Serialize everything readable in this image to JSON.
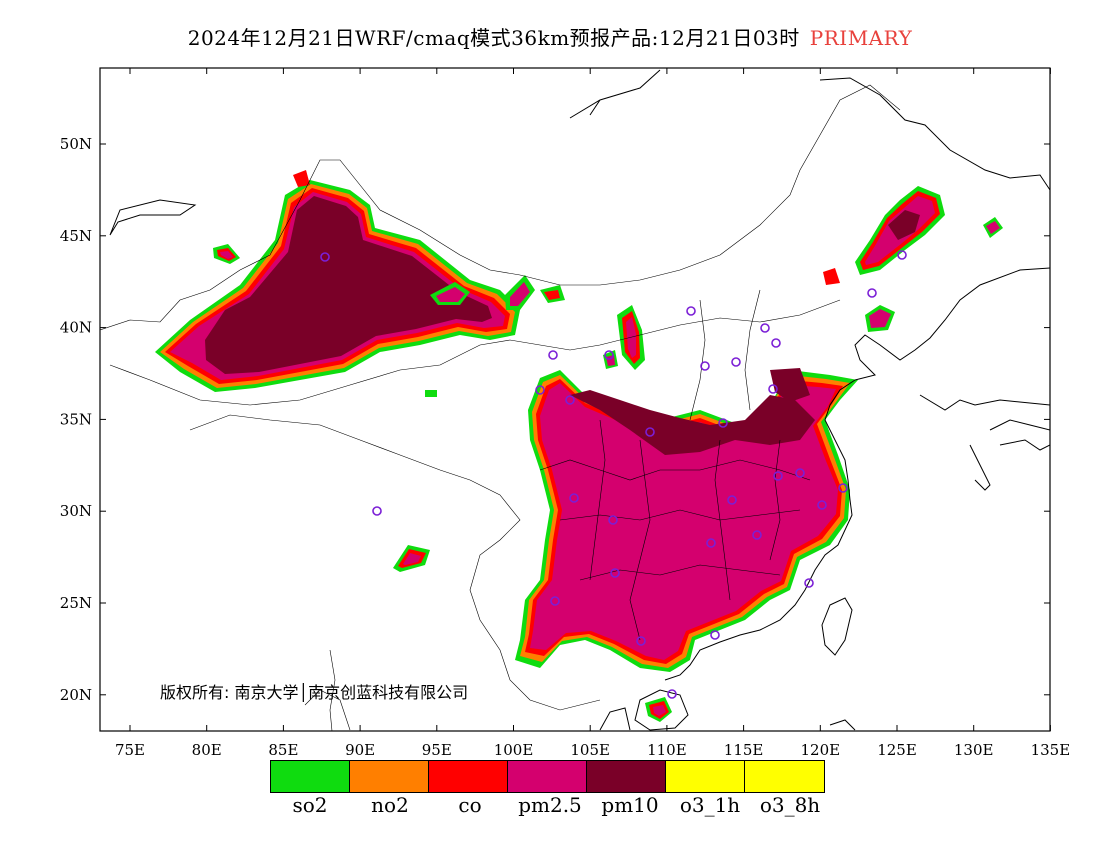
{
  "title": {
    "main": "2024年12月21日WRF/cmaq模式36km预报产品:12月21日03时",
    "mode": "PRIMARY",
    "mode_color": "#e8413c"
  },
  "axes": {
    "lon_ticks": [
      "75E",
      "80E",
      "85E",
      "90E",
      "95E",
      "100E",
      "105E",
      "110E",
      "115E",
      "120E",
      "125E",
      "130E",
      "135E"
    ],
    "lat_ticks": [
      "50N",
      "45N",
      "40N",
      "35N",
      "30N",
      "25N",
      "20N"
    ]
  },
  "copyright": "版权所有: 南京大学│南京创蓝科技有限公司",
  "legend": [
    {
      "label": "so2",
      "color": "#0fdc0f"
    },
    {
      "label": "no2",
      "color": "#ff7f00"
    },
    {
      "label": "co",
      "color": "#ff0000"
    },
    {
      "label": "pm2.5",
      "color": "#d4006e"
    },
    {
      "label": "pm10",
      "color": "#7a0028"
    },
    {
      "label": "o3_1h",
      "color": "#ffff00"
    },
    {
      "label": "o3_8h",
      "color": "#ffff00"
    }
  ],
  "stations": {
    "marker": "circle",
    "color": "#7b1fd6"
  }
}
